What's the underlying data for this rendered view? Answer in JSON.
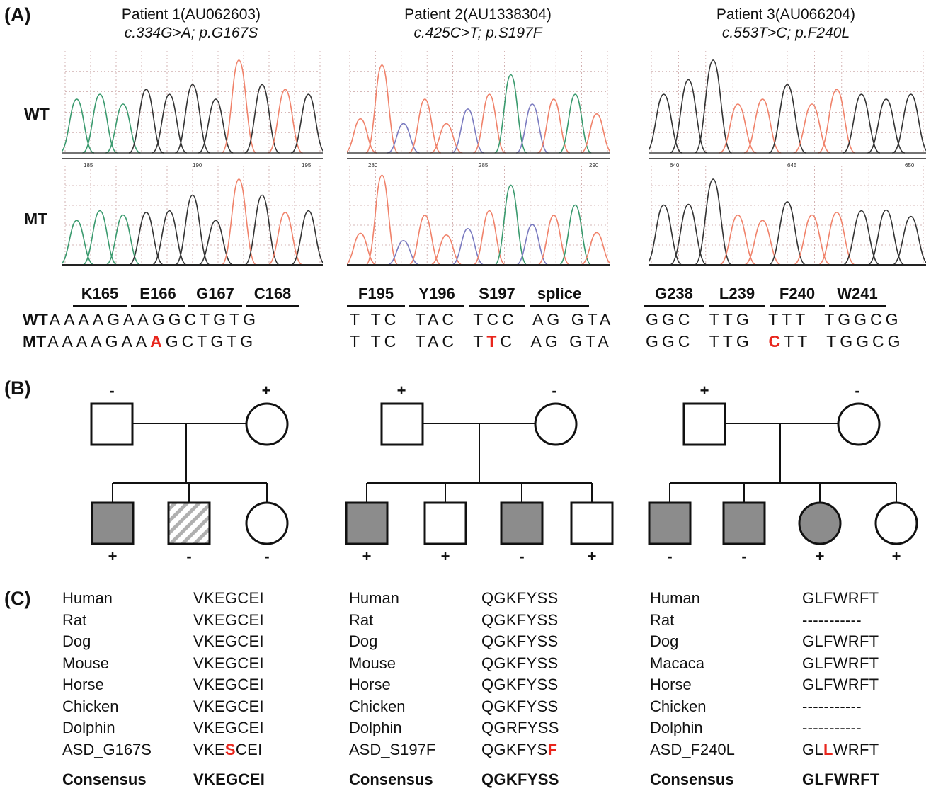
{
  "panels": {
    "a": "(A)",
    "b": "(B)",
    "c": "(C)"
  },
  "row_labels": {
    "wt": "WT",
    "mt": "MT"
  },
  "patients": [
    {
      "title": "Patient 1(AU062603)",
      "mutation": "c.334G>A; p.G167S",
      "codons": [
        "K165",
        "E166",
        "G167",
        "C168"
      ],
      "wt_seq": "AAAAGAAGGCTGTG",
      "mt_pre": "AAAAGAA",
      "mt_mut": "A",
      "mt_post": "GCTGTG",
      "trace_ticks_top": [
        "185",
        "190",
        "195"
      ]
    },
    {
      "title": "Patient 2(AU1338304)",
      "mutation": "c.425C>T; p.S197F",
      "codons": [
        "F195",
        "Y196",
        "S197",
        "splice"
      ],
      "wt_seq": "T TC  TAC  TCC  AG GTA",
      "mt_pre": "T TC  TAC  T",
      "mt_mut": "T",
      "mt_post": "C  AG GTA",
      "trace_ticks_top": [
        "280",
        "285",
        "290"
      ]
    },
    {
      "title": "Patient 3(AU066204)",
      "mutation": "c.553T>C; p.F240L",
      "codons": [
        "G238",
        "L239",
        "F240",
        "W241"
      ],
      "wt_seq": "GGC  TTG  TTT  TGGCG",
      "mt_pre": "GGC  TTG  ",
      "mt_mut": "C",
      "mt_post": "TT  TGGCG",
      "trace_ticks_top": [
        "640",
        "645",
        "650"
      ]
    }
  ],
  "pedigrees": [
    {
      "parents": [
        "-",
        "+"
      ],
      "children": [
        "+",
        "-",
        "-"
      ]
    },
    {
      "parents": [
        "+",
        "-"
      ],
      "children": [
        "+",
        "+",
        "-",
        "+"
      ]
    },
    {
      "parents": [
        "+",
        "-"
      ],
      "children": [
        "-",
        "-",
        "+",
        "+"
      ]
    }
  ],
  "alignments": [
    {
      "species": [
        "Human",
        "Rat",
        "Dog",
        "Mouse",
        "Horse",
        "Chicken",
        "Dolphin",
        "ASD_G167S"
      ],
      "seqs": [
        "VKEGCEI",
        "VKEGCEI",
        "VKEGCEI",
        "VKEGCEI",
        "VKEGCEI",
        "VKEGCEI",
        "VKEGCEI"
      ],
      "mut_pre": "VKE",
      "mut_res": "S",
      "mut_post": "CEI",
      "consensus_label": "Consensus",
      "consensus": "VKEGCEI"
    },
    {
      "species": [
        "Human",
        "Rat",
        "Dog",
        "Mouse",
        "Horse",
        "Chicken",
        "Dolphin",
        "ASD_S197F"
      ],
      "seqs": [
        "QGKFYSS",
        "QGKFYSS",
        "QGKFYSS",
        "QGKFYSS",
        "QGKFYSS",
        "QGKFYSS",
        "QGRFYSS"
      ],
      "mut_pre": "QGKFYS",
      "mut_res": "F",
      "mut_post": "",
      "consensus_label": "Consensus",
      "consensus": "QGKFYSS"
    },
    {
      "species": [
        "Human",
        "Rat",
        "Dog",
        "Macaca",
        "Horse",
        "Chicken",
        "Dolphin",
        "ASD_F240L"
      ],
      "seqs": [
        "GLFWRFT",
        "-----------",
        "GLFWRFT",
        "GLFWRFT",
        "GLFWRFT",
        "-----------",
        "-----------"
      ],
      "mut_pre": "GL",
      "mut_res": "L",
      "mut_post": "WRFT",
      "consensus_label": "Consensus",
      "consensus": "GLFWRFT"
    }
  ],
  "colors": {
    "mutation": "#e8251c",
    "affected": "#8c8c8c",
    "trace_green": "#3a9a6e",
    "trace_red": "#f0826a",
    "trace_black": "#333333",
    "trace_blue": "#7b7bc0"
  }
}
